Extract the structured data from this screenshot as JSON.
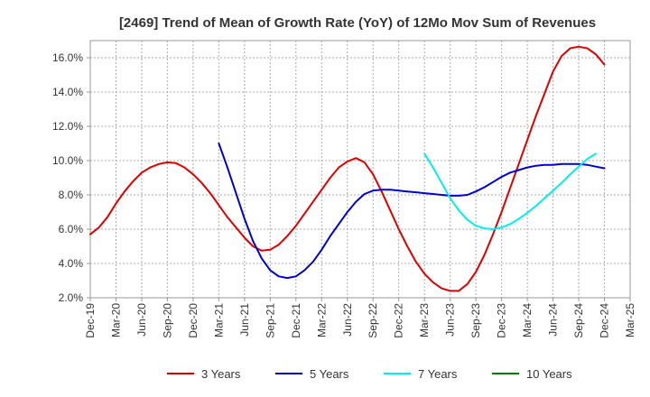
{
  "chart_data": {
    "type": "line",
    "title": "[2469]  Trend of Mean of Growth Rate (YoY) of 12Mo Mov Sum of Revenues",
    "xlabel": "",
    "ylabel": "",
    "ylim": [
      2.0,
      17.0
    ],
    "grid": true,
    "legend_position": "bottom",
    "y_ticks": [
      2.0,
      4.0,
      6.0,
      8.0,
      10.0,
      12.0,
      14.0,
      16.0
    ],
    "y_tick_labels": [
      "2.0%",
      "4.0%",
      "6.0%",
      "8.0%",
      "10.0%",
      "12.0%",
      "14.0%",
      "16.0%"
    ],
    "x_tick_labels": [
      "Dec-19",
      "Mar-20",
      "Jun-20",
      "Sep-20",
      "Dec-20",
      "Mar-21",
      "Jun-21",
      "Sep-21",
      "Dec-21",
      "Mar-22",
      "Jun-22",
      "Sep-22",
      "Dec-22",
      "Mar-23",
      "Jun-23",
      "Sep-23",
      "Dec-23",
      "Mar-24",
      "Jun-24",
      "Sep-24",
      "Dec-24",
      "Mar-25"
    ],
    "x_start": "Dec-19",
    "x_unit": "months since Dec-19",
    "series": [
      {
        "name": "3 Years",
        "color": "#dd0000",
        "points": [
          [
            0,
            5.7
          ],
          [
            1,
            6.1
          ],
          [
            2,
            6.7
          ],
          [
            3,
            7.5
          ],
          [
            4,
            8.2
          ],
          [
            5,
            8.8
          ],
          [
            6,
            9.3
          ],
          [
            7,
            9.6
          ],
          [
            8,
            9.8
          ],
          [
            9,
            9.9
          ],
          [
            10,
            9.85
          ],
          [
            11,
            9.6
          ],
          [
            12,
            9.2
          ],
          [
            13,
            8.7
          ],
          [
            14,
            8.1
          ],
          [
            15,
            7.4
          ],
          [
            16,
            6.7
          ],
          [
            17,
            6.1
          ],
          [
            18,
            5.5
          ],
          [
            19,
            5.0
          ],
          [
            20,
            4.75
          ],
          [
            21,
            4.8
          ],
          [
            22,
            5.1
          ],
          [
            23,
            5.6
          ],
          [
            24,
            6.2
          ],
          [
            25,
            6.9
          ],
          [
            26,
            7.6
          ],
          [
            27,
            8.3
          ],
          [
            28,
            9.0
          ],
          [
            29,
            9.6
          ],
          [
            30,
            9.95
          ],
          [
            31,
            10.15
          ],
          [
            32,
            9.9
          ],
          [
            33,
            9.2
          ],
          [
            34,
            8.2
          ],
          [
            35,
            7.1
          ],
          [
            36,
            6.0
          ],
          [
            37,
            5.0
          ],
          [
            38,
            4.1
          ],
          [
            39,
            3.4
          ],
          [
            40,
            2.9
          ],
          [
            41,
            2.55
          ],
          [
            42,
            2.4
          ],
          [
            43,
            2.4
          ],
          [
            44,
            2.8
          ],
          [
            45,
            3.5
          ],
          [
            46,
            4.5
          ],
          [
            47,
            5.7
          ],
          [
            48,
            7.0
          ],
          [
            49,
            8.4
          ],
          [
            50,
            9.8
          ],
          [
            51,
            11.2
          ],
          [
            52,
            12.6
          ],
          [
            53,
            13.9
          ],
          [
            54,
            15.2
          ],
          [
            55,
            16.1
          ],
          [
            56,
            16.55
          ],
          [
            57,
            16.65
          ],
          [
            58,
            16.55
          ],
          [
            59,
            16.2
          ],
          [
            60,
            15.6
          ]
        ]
      },
      {
        "name": "5 Years",
        "color": "#0000cc",
        "points": [
          [
            15,
            11.0
          ],
          [
            16,
            9.6
          ],
          [
            17,
            8.1
          ],
          [
            18,
            6.6
          ],
          [
            19,
            5.3
          ],
          [
            20,
            4.3
          ],
          [
            21,
            3.6
          ],
          [
            22,
            3.25
          ],
          [
            23,
            3.15
          ],
          [
            24,
            3.25
          ],
          [
            25,
            3.6
          ],
          [
            26,
            4.1
          ],
          [
            27,
            4.8
          ],
          [
            28,
            5.6
          ],
          [
            29,
            6.3
          ],
          [
            30,
            7.0
          ],
          [
            31,
            7.6
          ],
          [
            32,
            8.05
          ],
          [
            33,
            8.25
          ],
          [
            34,
            8.3
          ],
          [
            35,
            8.3
          ],
          [
            36,
            8.25
          ],
          [
            37,
            8.2
          ],
          [
            38,
            8.15
          ],
          [
            39,
            8.1
          ],
          [
            40,
            8.05
          ],
          [
            41,
            8.0
          ],
          [
            42,
            7.95
          ],
          [
            43,
            7.95
          ],
          [
            44,
            8.0
          ],
          [
            45,
            8.2
          ],
          [
            46,
            8.45
          ],
          [
            47,
            8.75
          ],
          [
            48,
            9.05
          ],
          [
            49,
            9.3
          ],
          [
            50,
            9.45
          ],
          [
            51,
            9.6
          ],
          [
            52,
            9.7
          ],
          [
            53,
            9.75
          ],
          [
            54,
            9.75
          ],
          [
            55,
            9.8
          ],
          [
            56,
            9.8
          ],
          [
            57,
            9.8
          ],
          [
            58,
            9.75
          ],
          [
            59,
            9.65
          ],
          [
            60,
            9.55
          ]
        ]
      },
      {
        "name": "7 Years",
        "color": "#00eeee",
        "points": [
          [
            39,
            10.4
          ],
          [
            40,
            9.6
          ],
          [
            41,
            8.7
          ],
          [
            42,
            7.8
          ],
          [
            43,
            7.1
          ],
          [
            44,
            6.55
          ],
          [
            45,
            6.2
          ],
          [
            46,
            6.05
          ],
          [
            47,
            6.0
          ],
          [
            48,
            6.1
          ],
          [
            49,
            6.3
          ],
          [
            50,
            6.6
          ],
          [
            51,
            6.95
          ],
          [
            52,
            7.35
          ],
          [
            53,
            7.8
          ],
          [
            54,
            8.25
          ],
          [
            55,
            8.7
          ],
          [
            56,
            9.2
          ],
          [
            57,
            9.65
          ],
          [
            58,
            10.1
          ],
          [
            59,
            10.4
          ]
        ]
      },
      {
        "name": "10 Years",
        "color": "#008000",
        "points": []
      }
    ]
  }
}
